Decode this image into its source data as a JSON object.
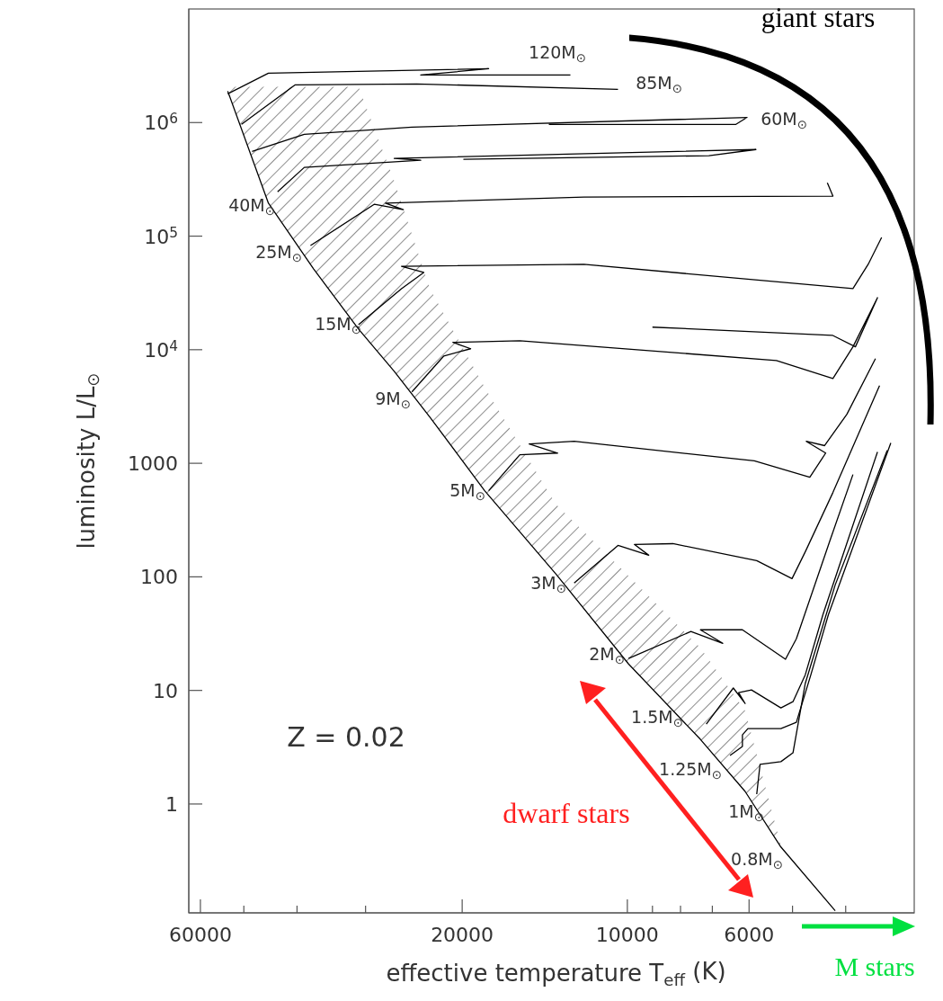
{
  "chart_data": {
    "type": "line",
    "xlabel": "effective temperature T$_{eff}$ (K)",
    "ylabel": "luminosity L/L$_{⊙}$",
    "log": "xy",
    "xlim": [
      63000,
      3000
    ],
    "ylim": [
      0.11,
      10000000
    ],
    "xticks": [
      60000,
      {
        "value": 50000,
        "label": null
      },
      {
        "value": 40000,
        "label": null
      },
      {
        "value": 30000,
        "label": null
      },
      20000,
      10000,
      {
        "value": 9000,
        "label": null
      },
      {
        "value": 8000,
        "label": null
      },
      {
        "value": 7000,
        "label": null
      },
      6000,
      {
        "value": 5000,
        "label": null
      },
      {
        "value": 4000,
        "label": null
      }
    ],
    "yticks": [
      1,
      10,
      100,
      1000,
      {
        "value": 10000,
        "label": "10$^{4}$"
      },
      {
        "value": 100000,
        "label": "10$^{5}$"
      },
      {
        "value": 1000000,
        "label": "10$^{6}$"
      }
    ],
    "series": [
      {
        "color": "#000000",
        "x": [
          53500,
          45100,
          37300,
          30900,
          26600,
          22900,
          18200,
          13500,
          9950,
          7360,
          6100,
          5250,
          4180
        ],
        "values": [
          1890000,
          195000,
          51400,
          15200,
          6460,
          2550,
          574,
          106,
          17.1,
          3.71,
          1.29,
          0.418,
          0.115
        ],
        "lower": [
          1890000,
          195000,
          51400,
          15200,
          6460,
          2550,
          574,
          106,
          17.1,
          3.71,
          1.29,
          0.418,
          null
        ],
        "upper": [
          2070000,
          2070000,
          2070000,
          2070000,
          306000,
          34500,
          4660,
          437,
          102,
          23.7,
          6.64,
          0.433,
          null
        ]
      },
      {
        "color": "#000000",
        "x": [
          53500,
          45100,
          17900,
          23800,
          12700
        ],
        "values": [
          1790000,
          2720000,
          2980000,
          2620000,
          2620000
        ]
      },
      {
        "color": "#000000",
        "x": [
          50500,
          40300,
          24200,
          10400
        ],
        "values": [
          964000,
          2150000,
          2190000,
          1960000
        ]
      },
      {
        "color": "#000000",
        "x": [
          48300,
          38800,
          24700,
          6050,
          6340,
          13900
        ],
        "values": [
          558000,
          789000,
          912000,
          1110000,
          964000,
          964000
        ]
      },
      {
        "color": "#000000",
        "x": [
          43400,
          38800,
          23800,
          26600,
          5830,
          7100,
          19900
        ],
        "values": [
          246000,
          403000,
          466000,
          483000,
          579000,
          511000,
          474000
        ]
      },
      {
        "color": "#000000",
        "x": [
          37800,
          28900,
          25600,
          27600,
          12000,
          4220,
          4320
        ],
        "values": [
          82600,
          191000,
          171000,
          195000,
          221000,
          225000,
          295000
        ]
      },
      {
        "color": "#000000",
        "x": [
          30900,
          25800,
          23500,
          25800,
          12000,
          3880,
          3640,
          3440
        ],
        "values": [
          16600,
          34500,
          47900,
          54300,
          56400,
          34500,
          56400,
          97300
        ]
      },
      {
        "color": "#000000",
        "x": [
          24700,
          21600,
          19300,
          20800,
          15700,
          5350,
          4220,
          3880,
          3500,
          3840,
          4230,
          9000
        ],
        "values": [
          4250,
          8810,
          10200,
          11600,
          12000,
          8040,
          5580,
          10600,
          28700,
          10600,
          13400,
          15800
        ]
      },
      {
        "color": "#000000",
        "x": [
          17900,
          15700,
          13400,
          15100,
          12500,
          5870,
          4650,
          4350,
          4720,
          4370,
          3980,
          3530
        ],
        "values": [
          574,
          1190,
          1230,
          1480,
          1560,
          1050,
          753,
          1230,
          1560,
          1430,
          2700,
          8340
        ]
      },
      {
        "color": "#000000",
        "x": [
          12500,
          10400,
          9140,
          9710,
          8260,
          5810,
          5010,
          4740,
          4220,
          3470
        ],
        "values": [
          88.1,
          189,
          155,
          193,
          196,
          139,
          96.4,
          166,
          553,
          4830
        ]
      },
      {
        "color": "#000000",
        "x": [
          9950,
          7660,
          6700,
          7360,
          6170,
          5150,
          4920,
          4270,
          3880
        ],
        "values": [
          19.1,
          33.0,
          26.0,
          34.2,
          34.2,
          18.8,
          28.5,
          211,
          796
        ]
      },
      {
        "color": "#000000",
        "x": [
          7180,
          6410,
          6100,
          6270,
          5940,
          5250,
          4990,
          4740,
          4400,
          3500
        ],
        "values": [
          5.06,
          10.5,
          7.67,
          9.55,
          10.1,
          7.02,
          7.96,
          13.7,
          46.6,
          1260
        ]
      },
      {
        "color": "#000000",
        "x": [
          6500,
          6170,
          6170,
          6030,
          5250,
          4920,
          4630,
          4300,
          3310
        ],
        "values": [
          2.67,
          3.21,
          4.06,
          4.61,
          4.61,
          5.24,
          13.7,
          46.6,
          1510
        ]
      },
      {
        "color": "#000000",
        "x": [
          5810,
          5730,
          5250,
          4990,
          4740,
          4180,
          3360
        ],
        "values": [
          1.22,
          2.23,
          2.36,
          2.82,
          11.5,
          84.9,
          1300
        ]
      }
    ],
    "annotations": [
      "120M$_{⊙}$",
      "85M$_{⊙}$",
      "60M$_{⊙}$",
      "40M$_{⊙}$",
      "25M$_{⊙}$",
      "15M$_{⊙}$",
      "9M$_{⊙}$",
      "5M$_{⊙}$",
      "3M$_{⊙}$",
      "2M$_{⊙}$",
      "1.5M$_{⊙}$",
      "1.25M$_{⊙}$",
      "1M$_{⊙}$",
      "0.8M$_{⊙}$",
      "Z = 0.02",
      "giant stars",
      "dwarf stars",
      "M stars"
    ]
  }
}
